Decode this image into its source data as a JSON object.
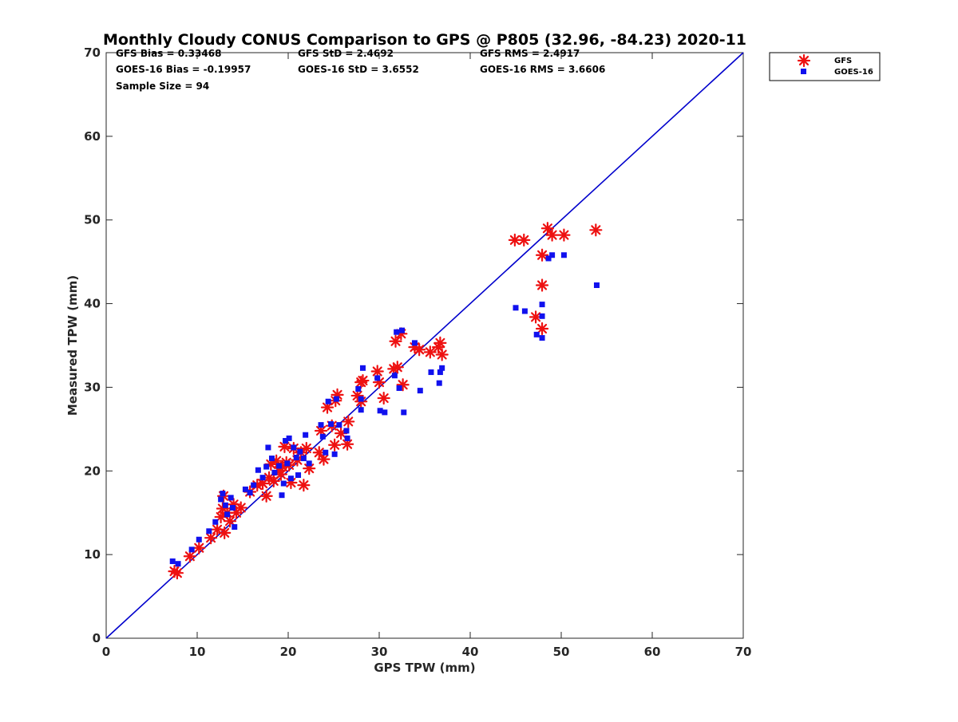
{
  "chart_data": {
    "type": "scatter",
    "title": "Monthly Cloudy CONUS Comparison to GPS @ P805 (32.96, -84.23) 2020-11",
    "xlabel": "GPS TPW (mm)",
    "ylabel": "Measured TPW (mm)",
    "xlim": [
      0,
      70
    ],
    "ylim": [
      0,
      70
    ],
    "xticks": [
      0,
      10,
      20,
      30,
      40,
      50,
      60,
      70
    ],
    "yticks": [
      0,
      10,
      20,
      30,
      40,
      50,
      60,
      70
    ],
    "grid": false,
    "legend_position": "top-right",
    "stats": [
      [
        "GFS Bias = 0.33468",
        "GFS StD = 2.4692",
        "GFS RMS = 2.4917"
      ],
      [
        "GOES-16 Bias = -0.19957",
        "GOES-16 StD = 3.6552",
        "GOES-16 RMS = 3.6606"
      ],
      [
        "Sample Size = 94"
      ]
    ],
    "reference_line": {
      "x": [
        0,
        70
      ],
      "y": [
        0,
        70
      ],
      "color": "#0000cc"
    },
    "series": [
      {
        "name": "GFS",
        "marker": "asterisk",
        "color": "#ee1111",
        "points": [
          [
            7.5,
            8.0
          ],
          [
            7.8,
            7.8
          ],
          [
            9.2,
            9.8
          ],
          [
            10.2,
            10.8
          ],
          [
            11.5,
            12.0
          ],
          [
            12.2,
            13.0
          ],
          [
            12.6,
            14.5
          ],
          [
            12.8,
            15.5
          ],
          [
            12.9,
            17.0
          ],
          [
            13.0,
            12.6
          ],
          [
            13.3,
            15.0
          ],
          [
            13.6,
            14.0
          ],
          [
            14.0,
            16.0
          ],
          [
            14.3,
            15.0
          ],
          [
            14.8,
            15.6
          ],
          [
            15.8,
            17.5
          ],
          [
            16.6,
            18.3
          ],
          [
            17.2,
            18.5
          ],
          [
            17.6,
            17.0
          ],
          [
            17.9,
            19.2
          ],
          [
            18.1,
            20.8
          ],
          [
            18.4,
            18.8
          ],
          [
            18.7,
            21.2
          ],
          [
            19.0,
            20.0
          ],
          [
            19.2,
            19.6
          ],
          [
            19.4,
            20.5
          ],
          [
            19.6,
            22.9
          ],
          [
            19.8,
            21.0
          ],
          [
            20.1,
            20.7
          ],
          [
            20.3,
            18.6
          ],
          [
            20.6,
            22.7
          ],
          [
            21.0,
            21.3
          ],
          [
            21.4,
            22.2
          ],
          [
            21.7,
            18.3
          ],
          [
            22.0,
            22.7
          ],
          [
            22.3,
            20.3
          ],
          [
            23.4,
            22.2
          ],
          [
            23.6,
            24.8
          ],
          [
            23.9,
            21.4
          ],
          [
            24.3,
            27.6
          ],
          [
            24.8,
            25.4
          ],
          [
            25.1,
            23.1
          ],
          [
            25.2,
            28.4
          ],
          [
            25.4,
            29.1
          ],
          [
            25.8,
            24.5
          ],
          [
            26.5,
            23.2
          ],
          [
            26.6,
            25.9
          ],
          [
            27.6,
            29.0
          ],
          [
            28.0,
            30.6
          ],
          [
            28.2,
            30.8
          ],
          [
            28.0,
            28.3
          ],
          [
            29.8,
            31.9
          ],
          [
            30.0,
            30.6
          ],
          [
            30.5,
            28.7
          ],
          [
            31.6,
            32.2
          ],
          [
            31.8,
            35.5
          ],
          [
            32.0,
            32.4
          ],
          [
            32.4,
            36.4
          ],
          [
            32.6,
            30.3
          ],
          [
            33.9,
            34.8
          ],
          [
            34.4,
            34.5
          ],
          [
            35.6,
            34.2
          ],
          [
            36.5,
            34.8
          ],
          [
            36.7,
            35.3
          ],
          [
            36.9,
            33.9
          ],
          [
            44.9,
            47.6
          ],
          [
            45.9,
            47.6
          ],
          [
            47.2,
            38.4
          ],
          [
            47.9,
            45.8
          ],
          [
            47.9,
            42.2
          ],
          [
            47.9,
            37.0
          ],
          [
            48.5,
            49.0
          ],
          [
            49.0,
            48.2
          ],
          [
            50.3,
            48.2
          ],
          [
            53.8,
            48.8
          ]
        ]
      },
      {
        "name": "GOES-16",
        "marker": "square",
        "color": "#1111ee",
        "points": [
          [
            7.3,
            9.2
          ],
          [
            7.9,
            8.9
          ],
          [
            9.4,
            10.6
          ],
          [
            10.2,
            11.8
          ],
          [
            11.3,
            12.8
          ],
          [
            12.0,
            13.9
          ],
          [
            12.6,
            16.6
          ],
          [
            12.8,
            17.3
          ],
          [
            13.1,
            15.9
          ],
          [
            13.3,
            14.8
          ],
          [
            13.7,
            16.8
          ],
          [
            13.9,
            15.6
          ],
          [
            14.1,
            13.3
          ],
          [
            15.3,
            17.8
          ],
          [
            15.8,
            17.4
          ],
          [
            16.2,
            18.3
          ],
          [
            16.7,
            20.1
          ],
          [
            17.2,
            19.2
          ],
          [
            17.6,
            20.5
          ],
          [
            17.8,
            22.8
          ],
          [
            18.2,
            21.5
          ],
          [
            18.5,
            19.8
          ],
          [
            19.0,
            20.6
          ],
          [
            19.3,
            17.1
          ],
          [
            19.5,
            18.5
          ],
          [
            19.7,
            23.6
          ],
          [
            19.9,
            20.9
          ],
          [
            20.1,
            23.9
          ],
          [
            20.3,
            19.1
          ],
          [
            20.6,
            22.8
          ],
          [
            20.9,
            21.6
          ],
          [
            21.1,
            19.5
          ],
          [
            21.3,
            22.3
          ],
          [
            21.7,
            21.5
          ],
          [
            21.9,
            24.3
          ],
          [
            22.3,
            20.9
          ],
          [
            23.6,
            25.5
          ],
          [
            23.8,
            24.1
          ],
          [
            24.1,
            22.2
          ],
          [
            24.4,
            28.3
          ],
          [
            24.7,
            25.6
          ],
          [
            25.1,
            22.0
          ],
          [
            25.3,
            28.6
          ],
          [
            25.6,
            25.5
          ],
          [
            26.4,
            24.8
          ],
          [
            26.5,
            23.9
          ],
          [
            27.7,
            29.8
          ],
          [
            28.0,
            28.6
          ],
          [
            28.2,
            32.3
          ],
          [
            28.0,
            27.3
          ],
          [
            29.8,
            31.1
          ],
          [
            30.1,
            27.2
          ],
          [
            30.6,
            27.0
          ],
          [
            31.7,
            31.4
          ],
          [
            31.9,
            36.6
          ],
          [
            32.2,
            29.9
          ],
          [
            32.5,
            36.8
          ],
          [
            32.7,
            27.0
          ],
          [
            33.9,
            35.3
          ],
          [
            34.5,
            29.6
          ],
          [
            35.7,
            31.8
          ],
          [
            36.6,
            30.5
          ],
          [
            36.7,
            31.8
          ],
          [
            36.9,
            32.3
          ],
          [
            45.0,
            39.5
          ],
          [
            46.0,
            39.1
          ],
          [
            47.3,
            36.3
          ],
          [
            47.9,
            38.5
          ],
          [
            47.9,
            35.9
          ],
          [
            47.9,
            39.9
          ],
          [
            48.6,
            45.4
          ],
          [
            49.0,
            45.8
          ],
          [
            50.3,
            45.8
          ],
          [
            53.9,
            42.2
          ]
        ]
      }
    ]
  }
}
